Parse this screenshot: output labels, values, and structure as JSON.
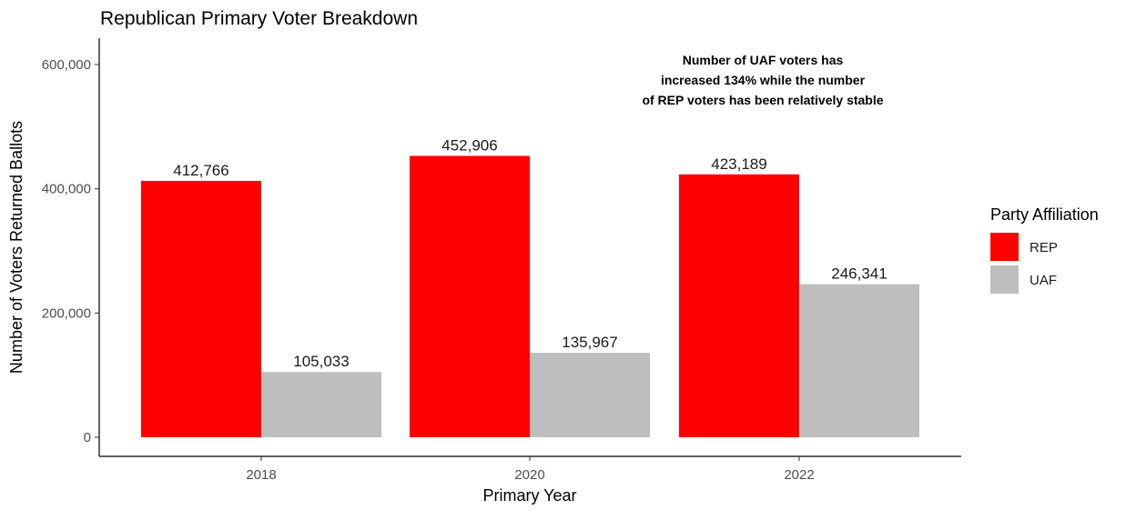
{
  "chart_data": {
    "type": "bar",
    "title": "Republican Primary Voter Breakdown",
    "xlabel": "Primary Year",
    "ylabel": "Number of Voters Returned Ballots",
    "categories": [
      "2018",
      "2020",
      "2022"
    ],
    "series": [
      {
        "name": "REP",
        "color": "#ff0000",
        "values": [
          412766,
          452906,
          423189
        ],
        "labels": [
          "412,766",
          "452,906",
          "423,189"
        ]
      },
      {
        "name": "UAF",
        "color": "#bebebe",
        "values": [
          105033,
          135967,
          246341
        ],
        "labels": [
          "105,033",
          "135,967",
          "246,341"
        ]
      }
    ],
    "ylim": [
      0,
      630000
    ],
    "yticks": [
      0,
      200000,
      400000,
      600000
    ],
    "ytick_labels": [
      "0",
      "200,000",
      "400,000",
      "600,000"
    ],
    "annotation": [
      "Number of UAF voters has",
      "increased 134% while the number",
      "of REP voters has been relatively stable"
    ],
    "legend_title": "Party Affiliation",
    "legend_position": "right",
    "grid": false
  }
}
